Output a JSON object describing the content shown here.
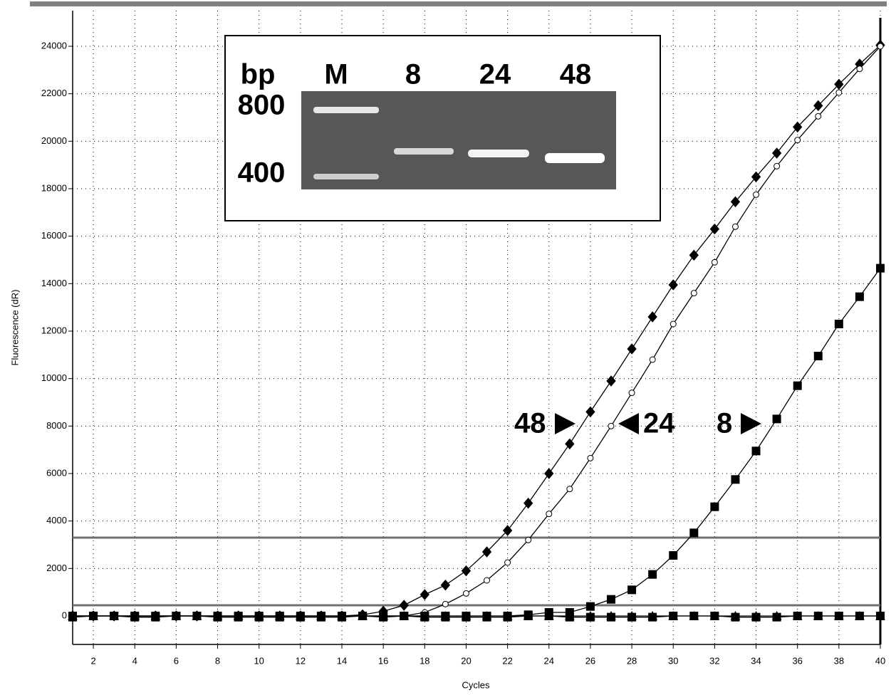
{
  "chart_data": {
    "type": "line",
    "xlabel": "Cycles",
    "ylabel": "Fluorescence (dR)",
    "x": [
      1,
      2,
      3,
      4,
      5,
      6,
      7,
      8,
      9,
      10,
      11,
      12,
      13,
      14,
      15,
      16,
      17,
      18,
      19,
      20,
      21,
      22,
      23,
      24,
      25,
      26,
      27,
      28,
      29,
      30,
      31,
      32,
      33,
      34,
      35,
      36,
      37,
      38,
      39,
      40
    ],
    "xlim": [
      1,
      40
    ],
    "ylim": [
      -1200,
      25500
    ],
    "xticks": [
      2,
      4,
      6,
      8,
      10,
      12,
      14,
      16,
      18,
      20,
      22,
      24,
      26,
      28,
      30,
      32,
      34,
      36,
      38,
      40
    ],
    "yticks": [
      0,
      2000,
      4000,
      6000,
      8000,
      10000,
      12000,
      14000,
      16000,
      18000,
      20000,
      22000,
      24000
    ],
    "grid": true,
    "threshold_lines": [
      3300,
      450
    ],
    "series": [
      {
        "name": "48",
        "color": "#000000",
        "marker": "diamond",
        "values": [
          0,
          0,
          0,
          0,
          0,
          0,
          0,
          0,
          0,
          0,
          0,
          0,
          0,
          0,
          50,
          200,
          450,
          900,
          1300,
          1900,
          2700,
          3600,
          4750,
          6000,
          7250,
          8600,
          9900,
          11250,
          12600,
          13950,
          15200,
          16300,
          17450,
          18500,
          19500,
          20600,
          21500,
          22400,
          23250,
          24050
        ]
      },
      {
        "name": "24",
        "color": "#000000",
        "marker": "circle",
        "values": [
          0,
          0,
          0,
          0,
          0,
          0,
          0,
          0,
          0,
          0,
          0,
          0,
          0,
          0,
          0,
          0,
          0,
          150,
          500,
          950,
          1500,
          2250,
          3200,
          4300,
          5350,
          6650,
          8000,
          9400,
          10800,
          12300,
          13600,
          14900,
          16400,
          17750,
          18950,
          20050,
          21050,
          22050,
          23050,
          24000
        ]
      },
      {
        "name": "8",
        "color": "#000000",
        "marker": "square",
        "values": [
          0,
          0,
          0,
          0,
          0,
          0,
          0,
          0,
          0,
          0,
          0,
          0,
          0,
          0,
          0,
          0,
          0,
          0,
          0,
          0,
          0,
          0,
          50,
          150,
          150,
          400,
          700,
          1100,
          1750,
          2550,
          3500,
          4600,
          5750,
          6950,
          8300,
          9700,
          10950,
          12300,
          13450,
          14650
        ]
      },
      {
        "color": "#000000",
        "marker": "square",
        "values": [
          -50,
          0,
          0,
          -50,
          -50,
          0,
          0,
          -50,
          -50,
          -50,
          -50,
          -50,
          -50,
          -50,
          0,
          -50,
          0,
          -50,
          -50,
          -50,
          -50,
          -50,
          0,
          0,
          -50,
          -50,
          -50,
          -50,
          -50,
          0,
          0,
          0,
          -50,
          -50,
          -50,
          0,
          0,
          0,
          0,
          0
        ]
      },
      {
        "color": "#000000",
        "marker": "triangle",
        "values": [
          0,
          0,
          0,
          0,
          0,
          0,
          0,
          0,
          0,
          0,
          0,
          0,
          0,
          0,
          0,
          0,
          0,
          0,
          0,
          0,
          0,
          0,
          0,
          0,
          0,
          0,
          0,
          0,
          0,
          0,
          0,
          0,
          0,
          0,
          0,
          0,
          0,
          0,
          0,
          0
        ]
      }
    ],
    "inset": {
      "lanes": [
        "bp",
        "M",
        "8",
        "24",
        "48"
      ],
      "sizes": [
        "800",
        "400"
      ]
    }
  }
}
